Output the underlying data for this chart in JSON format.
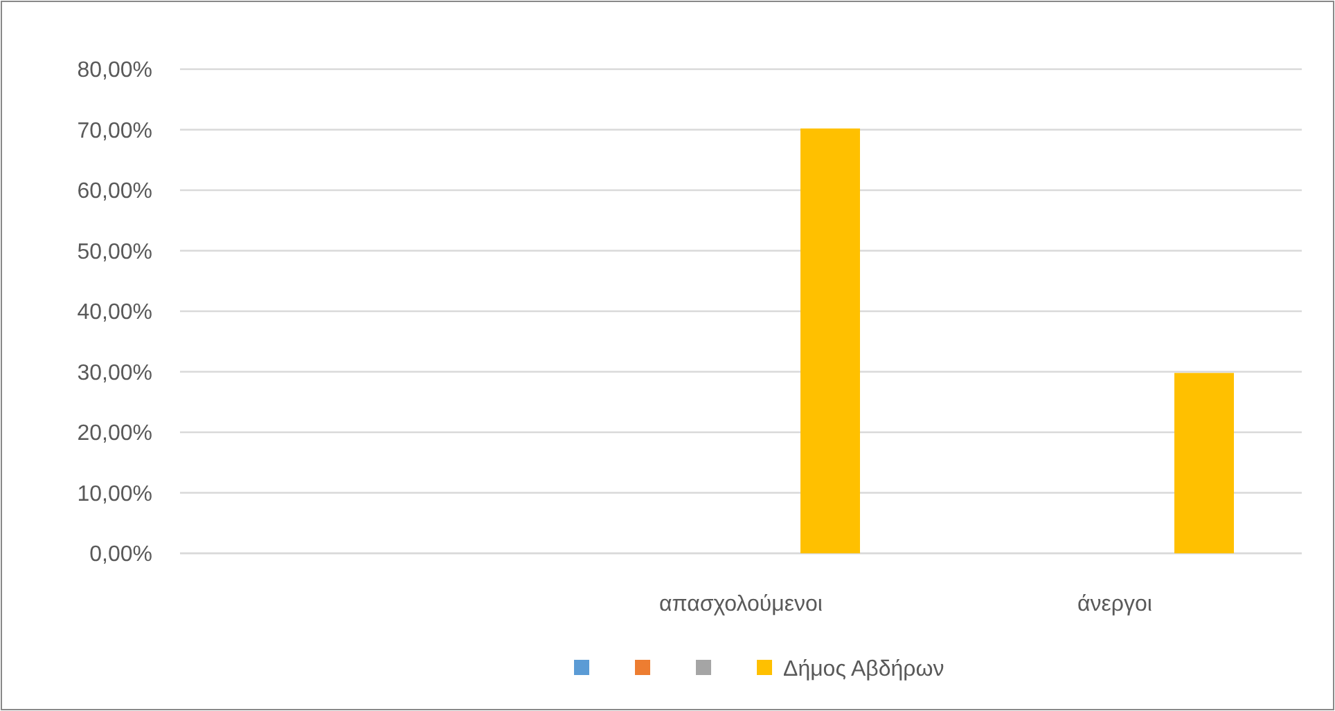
{
  "chart_data": {
    "type": "bar",
    "categories": [
      null,
      "απασχολούμενοι",
      "άνεργοι"
    ],
    "series": [
      {
        "color": "#5b9bd5",
        "values": [
          null,
          null,
          null
        ]
      },
      {
        "color": "#ed7d31",
        "values": [
          null,
          null,
          null
        ]
      },
      {
        "color": "#a5a5a5",
        "values": [
          null,
          null,
          null
        ]
      },
      {
        "name": "Δήμος Αβδήρων",
        "color": "#ffc000",
        "values": [
          null,
          70.2,
          29.8
        ]
      }
    ],
    "ylim": [
      0,
      80
    ],
    "yticks": [
      {
        "value": 0,
        "label": "0,00%"
      },
      {
        "value": 10,
        "label": "10,00%"
      },
      {
        "value": 20,
        "label": "20,00%"
      },
      {
        "value": 30,
        "label": "30,00%"
      },
      {
        "value": 40,
        "label": "40,00%"
      },
      {
        "value": 50,
        "label": "50,00%"
      },
      {
        "value": 60,
        "label": "60,00%"
      },
      {
        "value": 70,
        "label": "70,00%"
      },
      {
        "value": 80,
        "label": "80,00%"
      }
    ],
    "grid": "y",
    "legend": "bottom"
  }
}
